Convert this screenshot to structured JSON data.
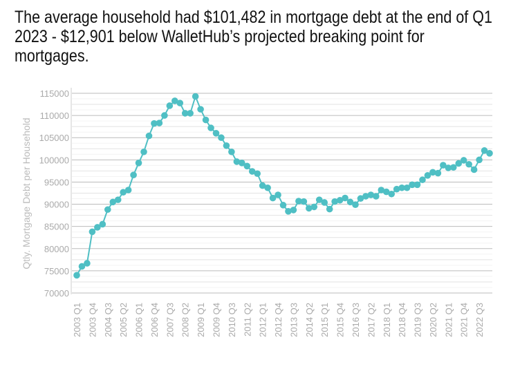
{
  "title": "The average household had $101,482 in mortgage debt at the end of Q1 2023 - $12,901 below WalletHub’s projected breaking point for mortgages.",
  "chart_data": {
    "type": "line",
    "title": "The average household had $101,482 in mortgage debt at the end of Q1 2023 - $12,901 below WalletHub’s projected breaking point for mortgages.",
    "xlabel": "",
    "ylabel": "Qtly. Mortgage Debt per Household",
    "ylim": [
      70000,
      115000
    ],
    "yticks": [
      70000,
      75000,
      80000,
      85000,
      90000,
      95000,
      100000,
      105000,
      110000,
      115000
    ],
    "grid": true,
    "color": "#4fbfc4",
    "start_year": 2003,
    "xtick_labels": [
      "2003 Q1",
      "2003 Q4",
      "2004 Q3",
      "2005 Q2",
      "2006 Q1",
      "2006 Q4",
      "2007 Q3",
      "2008 Q2",
      "2009 Q1",
      "2009 Q4",
      "2010 Q3",
      "2011 Q2",
      "2012 Q1",
      "2012 Q4",
      "2013 Q3",
      "2014 Q2",
      "2015 Q1",
      "2015 Q4",
      "2016 Q3",
      "2017 Q2",
      "2018 Q1",
      "2018 Q4",
      "2019 Q3",
      "2020 Q2",
      "2021 Q1",
      "2021 Q4",
      "2022 Q3"
    ],
    "values": [
      74000,
      76000,
      76700,
      83800,
      84800,
      85500,
      88800,
      90500,
      91000,
      92700,
      93200,
      96600,
      99300,
      101800,
      105400,
      108200,
      108300,
      110000,
      112200,
      113300,
      112800,
      110500,
      110500,
      114300,
      111400,
      109000,
      107200,
      106000,
      105000,
      103200,
      101800,
      99600,
      99300,
      98600,
      97400,
      96900,
      94200,
      93700,
      91400,
      92100,
      89800,
      88400,
      88700,
      90700,
      90600,
      89100,
      89400,
      91000,
      90400,
      88900,
      90600,
      90900,
      91400,
      90500,
      89900,
      91300,
      91800,
      92100,
      91800,
      93200,
      92800,
      92300,
      93400,
      93700,
      93700,
      94400,
      94400,
      95500,
      96500,
      97200,
      97000,
      98800,
      98200,
      98300,
      99200,
      99900,
      99000,
      97800,
      100000,
      102100,
      101482
    ]
  }
}
